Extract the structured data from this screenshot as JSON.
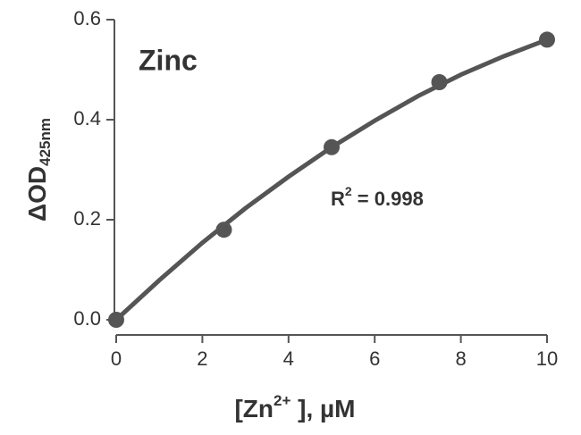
{
  "chart_data": {
    "type": "scatter",
    "title": "Zinc",
    "xlabel": [
      "[Zn",
      "2+",
      " ], µM"
    ],
    "ylabel": [
      "ΔOD",
      "425nm"
    ],
    "annotation": [
      "R",
      "2",
      " = 0.998"
    ],
    "x": [
      0,
      2.5,
      5,
      7.5,
      10
    ],
    "values": [
      0,
      0.18,
      0.345,
      0.475,
      0.56
    ],
    "color": "#555555",
    "fit_line": {
      "x": [
        0,
        1,
        2,
        3,
        4,
        5,
        6,
        7,
        8,
        9,
        10
      ],
      "values": [
        0,
        0.079,
        0.154,
        0.223,
        0.286,
        0.345,
        0.398,
        0.447,
        0.49,
        0.527,
        0.56
      ]
    },
    "xlim": [
      0,
      10
    ],
    "xticks": [
      0,
      2,
      4,
      6,
      8,
      10
    ],
    "ylim": [
      0,
      0.6
    ],
    "yticks": [
      {
        "value": 0,
        "label": "0.0"
      },
      {
        "value": 0.2,
        "label": "0.2"
      },
      {
        "value": 0.4,
        "label": "0.4"
      },
      {
        "value": 0.6,
        "label": "0.6"
      }
    ]
  }
}
